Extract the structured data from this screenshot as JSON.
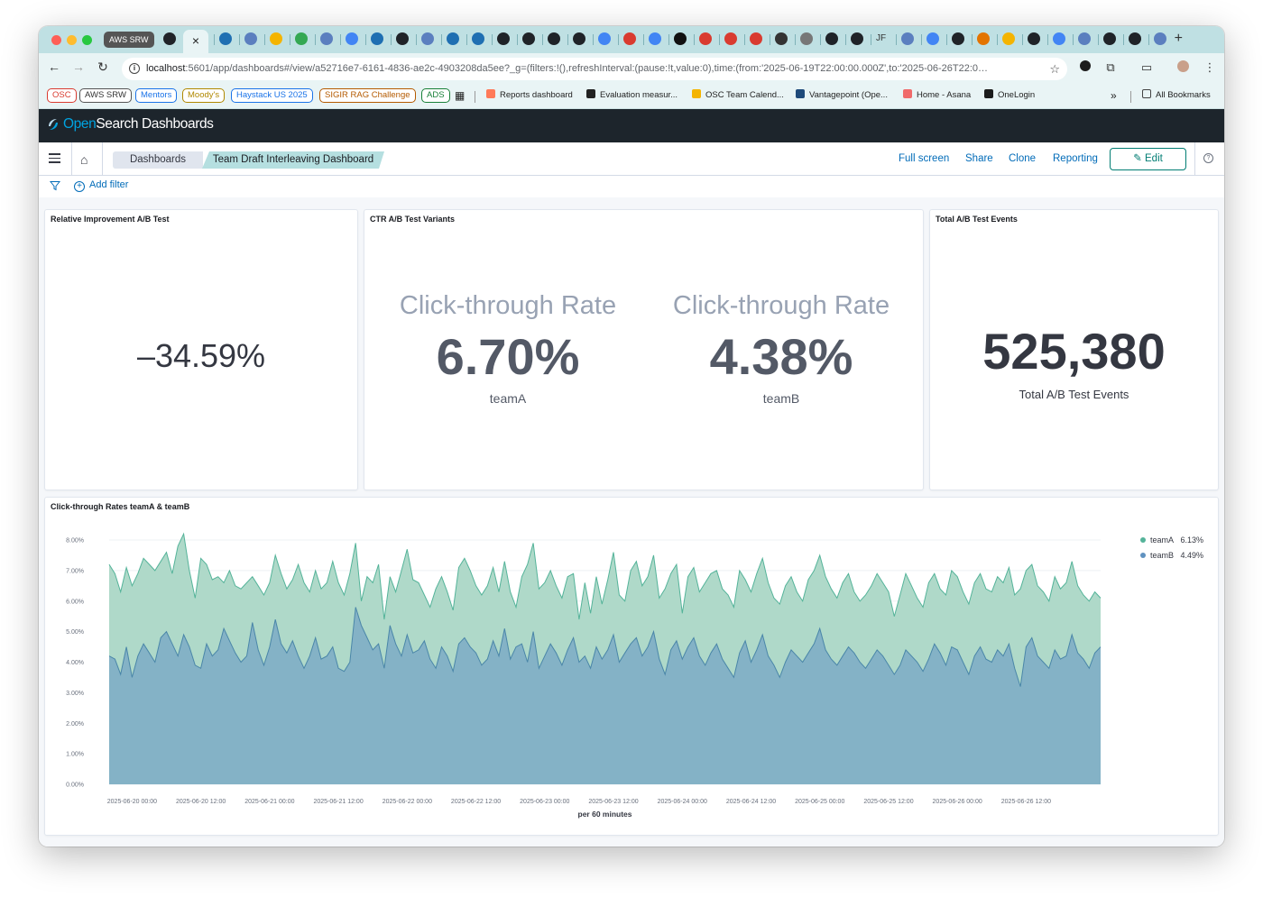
{
  "browser": {
    "pinned_tab_label": "AWS SRW",
    "active_tab_close": "×",
    "new_tab": "+",
    "url_host": "localhost",
    "url_rest": ":5601/app/dashboards#/view/a52716e7-6161-4836-ae2c-4903208da5ee?_g=(filters:!(),refreshInterval:(pause:!t,value:0),time:(from:'2025-06-19T22:00:00.000Z',to:'2025-06-26T22:0…",
    "tab_text_glyph": "JF",
    "bookmark_chips": [
      {
        "label": "OSC",
        "color": "#d93b30"
      },
      {
        "label": "AWS SRW",
        "color": "#555555"
      },
      {
        "label": "Mentors",
        "color": "#1a73e8"
      },
      {
        "label": "Moody's",
        "color": "#b08800"
      },
      {
        "label": "Haystack US 2025",
        "color": "#1a73e8"
      },
      {
        "label": "SIGIR RAG Challenge",
        "color": "#b45a00"
      },
      {
        "label": "ADS",
        "color": "#188038"
      }
    ],
    "bookmark_links": [
      {
        "label": "Reports dashboard",
        "icon_color": "#ff7a59"
      },
      {
        "label": "Evaluation measur...",
        "icon_color": "#222222"
      },
      {
        "label": "OSC Team Calend...",
        "icon_color": "#f4b400"
      },
      {
        "label": "Vantagepoint (Ope...",
        "icon_color": "#1e4a7a"
      },
      {
        "label": "Home - Asana",
        "icon_color": "#f06a6a"
      },
      {
        "label": "OneLogin",
        "icon_color": "#1c1c1c"
      }
    ],
    "more_bookmarks": "»",
    "all_bookmarks": "All Bookmarks"
  },
  "app": {
    "logo_open": "Open",
    "logo_rest": "Search Dashboards",
    "breadcrumbs": [
      "Dashboards",
      "Team Draft Interleaving Dashboard"
    ],
    "actions": [
      "Full screen",
      "Share",
      "Clone",
      "Reporting"
    ],
    "edit_label": "Edit",
    "add_filter": "Add filter"
  },
  "panels": {
    "relative": {
      "title": "Relative Improvement A/B Test",
      "value": "–34.59%"
    },
    "ctr": {
      "title": "CTR A/B Test Variants",
      "metrics": [
        {
          "label": "Click-through Rate",
          "value": "6.70%",
          "sub": "teamA"
        },
        {
          "label": "Click-through Rate",
          "value": "4.38%",
          "sub": "teamB"
        }
      ]
    },
    "total": {
      "title": "Total A/B Test Events",
      "value": "525,380",
      "sub": "Total A/B Test Events"
    }
  },
  "chart_data": {
    "type": "area",
    "title": "Click-through Rates teamA & teamB",
    "xlabel": "per 60 minutes",
    "ylabel": "",
    "ylim": [
      0,
      8
    ],
    "yticks": [
      "0.00%",
      "1.00%",
      "2.00%",
      "3.00%",
      "4.00%",
      "5.00%",
      "6.00%",
      "7.00%",
      "8.00%"
    ],
    "xticks": [
      "2025-06-20 00:00",
      "2025-06-20 12:00",
      "2025-06-21 00:00",
      "2025-06-21 12:00",
      "2025-06-22 00:00",
      "2025-06-22 12:00",
      "2025-06-23 00:00",
      "2025-06-23 12:00",
      "2025-06-24 00:00",
      "2025-06-24 12:00",
      "2025-06-25 00:00",
      "2025-06-25 12:00",
      "2025-06-26 00:00",
      "2025-06-26 12:00"
    ],
    "x_start_offset_hours": -4,
    "step_hours": 1,
    "legend": [
      {
        "name": "teamA",
        "value": "6.13%",
        "color": "#54b399"
      },
      {
        "name": "teamB",
        "value": "4.49%",
        "color": "#6092c0"
      }
    ],
    "series": [
      {
        "name": "teamA",
        "values": [
          7.2,
          6.9,
          6.3,
          7.1,
          6.5,
          6.9,
          7.4,
          7.2,
          7.0,
          7.3,
          7.6,
          6.9,
          7.8,
          8.2,
          7.0,
          6.1,
          7.4,
          7.2,
          6.7,
          6.8,
          6.6,
          7.0,
          6.5,
          6.4,
          6.6,
          6.8,
          6.5,
          6.2,
          6.6,
          7.5,
          6.9,
          6.4,
          6.7,
          7.2,
          6.6,
          6.3,
          7.0,
          6.4,
          6.6,
          7.3,
          6.6,
          6.2,
          6.9,
          7.9,
          6.0,
          6.8,
          6.6,
          7.2,
          5.4,
          6.8,
          6.3,
          7.0,
          7.7,
          6.7,
          6.6,
          6.2,
          5.8,
          6.4,
          6.8,
          6.3,
          5.7,
          7.1,
          7.4,
          7.0,
          6.5,
          6.2,
          6.5,
          7.1,
          6.3,
          7.3,
          6.3,
          5.8,
          6.8,
          7.2,
          7.9,
          6.4,
          6.6,
          7.0,
          6.5,
          6.1,
          6.8,
          6.9,
          5.4,
          6.6,
          5.6,
          6.8,
          5.9,
          6.7,
          7.6,
          6.2,
          6.0,
          7.0,
          7.3,
          6.5,
          6.8,
          7.5,
          6.1,
          6.4,
          6.9,
          7.2,
          5.6,
          6.8,
          7.1,
          6.3,
          6.6,
          6.9,
          7.0,
          6.4,
          6.2,
          5.8,
          7.0,
          6.7,
          6.3,
          6.9,
          7.4,
          6.6,
          6.1,
          5.9,
          6.5,
          6.8,
          6.3,
          6.0,
          6.7,
          7.0,
          7.5,
          6.8,
          6.4,
          6.1,
          6.6,
          6.9,
          6.3,
          6.0,
          6.2,
          6.5,
          6.9,
          6.6,
          6.3,
          5.5,
          6.2,
          6.9,
          6.5,
          6.1,
          5.8,
          6.6,
          6.9,
          6.4,
          6.2,
          7.0,
          6.8,
          6.3,
          5.9,
          6.6,
          6.9,
          6.4,
          6.3,
          6.8,
          6.6,
          7.1,
          6.2,
          6.4,
          7.0,
          7.2,
          6.5,
          6.3,
          6.0,
          6.8,
          6.4,
          6.6,
          7.3,
          6.5,
          6.2,
          6.0,
          6.3,
          6.1
        ],
        "color": "#54b399"
      },
      {
        "name": "teamB",
        "values": [
          4.2,
          4.1,
          3.6,
          4.5,
          3.5,
          4.2,
          4.6,
          4.3,
          4.0,
          4.8,
          5.0,
          4.6,
          4.2,
          4.9,
          4.5,
          3.9,
          3.8,
          4.6,
          4.2,
          4.4,
          5.1,
          4.7,
          4.3,
          4.0,
          4.2,
          5.3,
          4.4,
          3.9,
          4.5,
          5.4,
          4.6,
          4.3,
          4.7,
          4.2,
          3.8,
          4.2,
          4.8,
          4.1,
          4.2,
          4.5,
          3.8,
          3.7,
          4.0,
          5.8,
          5.2,
          4.8,
          4.4,
          4.6,
          3.8,
          5.2,
          4.6,
          4.2,
          4.9,
          4.3,
          4.4,
          4.7,
          4.1,
          3.8,
          4.5,
          4.2,
          3.7,
          4.6,
          4.8,
          4.5,
          4.3,
          3.9,
          4.1,
          4.7,
          4.2,
          5.1,
          4.1,
          4.5,
          4.6,
          4.0,
          5.0,
          3.8,
          4.2,
          4.6,
          4.3,
          3.9,
          4.4,
          4.8,
          4.0,
          4.2,
          3.8,
          4.5,
          4.1,
          4.4,
          4.9,
          4.0,
          4.3,
          4.6,
          4.8,
          4.2,
          4.5,
          5.0,
          4.1,
          3.6,
          4.4,
          4.7,
          4.1,
          4.5,
          4.8,
          4.2,
          3.9,
          4.3,
          4.6,
          4.1,
          3.8,
          3.5,
          4.3,
          4.7,
          4.0,
          4.4,
          4.9,
          4.2,
          3.9,
          3.5,
          4.0,
          4.4,
          4.2,
          4.0,
          4.3,
          4.6,
          5.1,
          4.4,
          4.1,
          3.9,
          4.2,
          4.5,
          4.3,
          4.0,
          3.8,
          4.1,
          4.4,
          4.2,
          3.9,
          3.6,
          3.9,
          4.4,
          4.2,
          4.0,
          3.7,
          4.1,
          4.6,
          4.3,
          3.9,
          4.5,
          4.4,
          4.0,
          3.6,
          4.2,
          4.5,
          4.1,
          4.0,
          4.4,
          4.2,
          4.6,
          3.8,
          3.2,
          4.5,
          4.8,
          4.2,
          4.0,
          3.8,
          4.4,
          4.1,
          4.2,
          4.9,
          4.3,
          4.1,
          3.8,
          4.3,
          4.5
        ],
        "color": "#6092c0"
      }
    ]
  }
}
